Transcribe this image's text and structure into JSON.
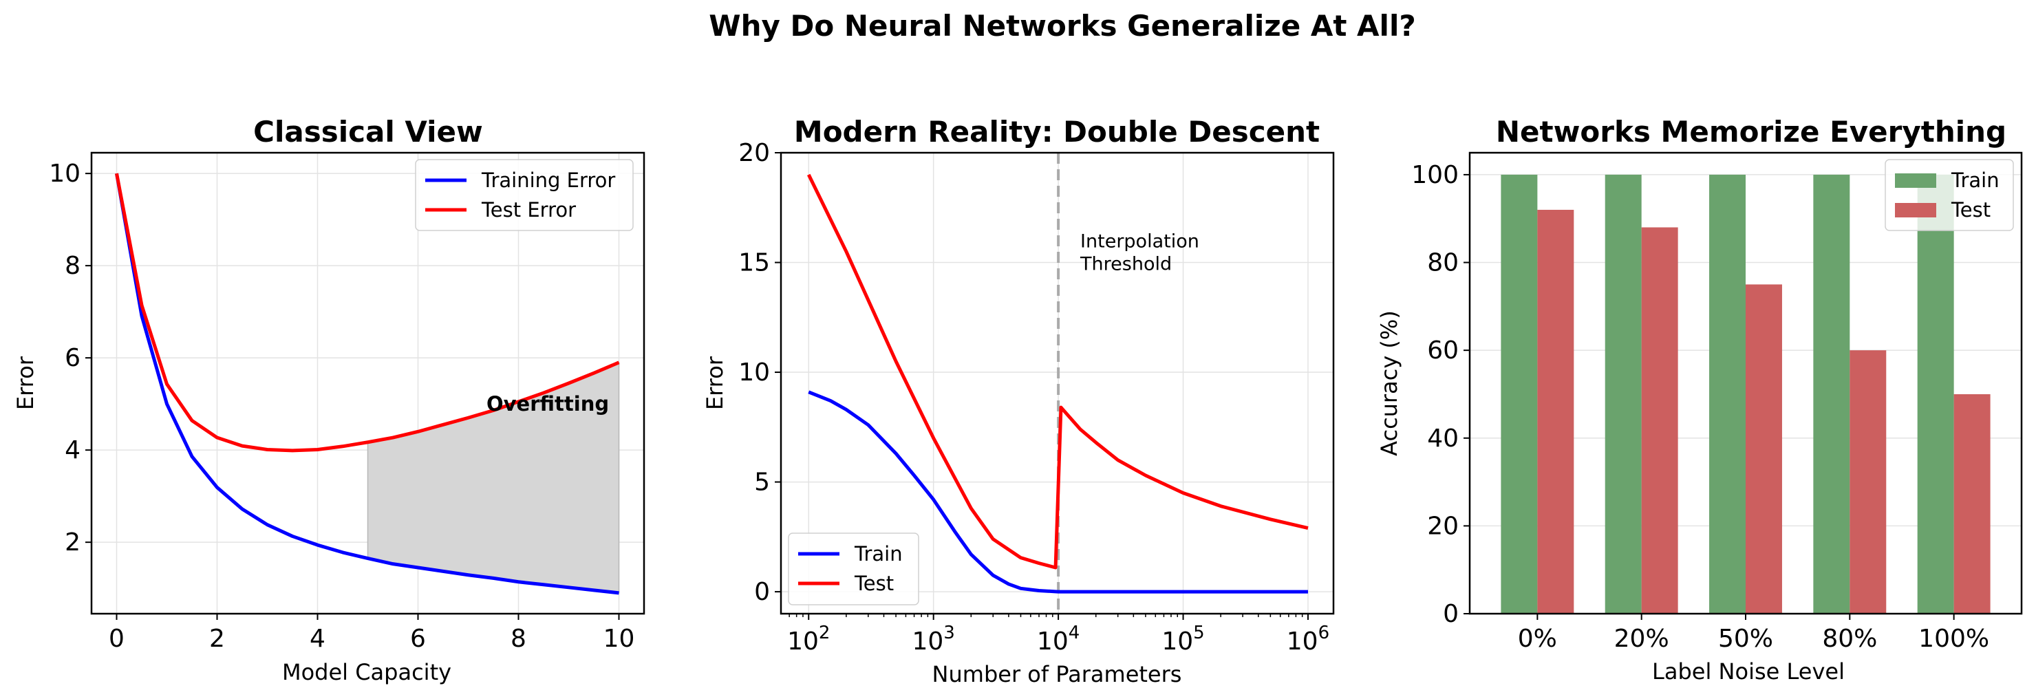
{
  "figure": {
    "title": "Why Do Neural Networks Generalize At All?"
  },
  "chart_data": [
    {
      "type": "line",
      "title": "Classical View",
      "xlabel": "Model Capacity",
      "ylabel": "Error",
      "xlim": [
        -0.5,
        10.5
      ],
      "ylim": [
        0.45,
        10.45
      ],
      "xticks": [
        "0",
        "2",
        "4",
        "6",
        "8",
        "10"
      ],
      "xtick_values": [
        0,
        2,
        4,
        6,
        8,
        10
      ],
      "yticks": [
        "2",
        "4",
        "6",
        "8",
        "10"
      ],
      "ytick_values": [
        2,
        4,
        6,
        8,
        10
      ],
      "grid": true,
      "legend_position": "top-right",
      "x": [
        0,
        0.5,
        1,
        1.5,
        2,
        2.5,
        3,
        3.5,
        4,
        4.5,
        5,
        5.5,
        6,
        6.5,
        7,
        7.5,
        8,
        8.5,
        9,
        9.5,
        10
      ],
      "series": [
        {
          "name": "Training Error",
          "color": "#0000ff",
          "values": [
            10.0,
            6.91,
            5.0,
            3.86,
            3.19,
            2.72,
            2.38,
            2.13,
            1.94,
            1.78,
            1.65,
            1.53,
            1.45,
            1.37,
            1.29,
            1.22,
            1.14,
            1.08,
            1.02,
            0.96,
            0.9
          ]
        },
        {
          "name": "Test Error",
          "color": "#ff0000",
          "values": [
            10.0,
            7.14,
            5.43,
            4.64,
            4.27,
            4.09,
            4.01,
            3.99,
            4.01,
            4.08,
            4.17,
            4.27,
            4.4,
            4.55,
            4.7,
            4.86,
            5.05,
            5.24,
            5.45,
            5.67,
            5.9
          ]
        }
      ],
      "shaded_region": {
        "x_from": 5,
        "x_to": 10,
        "between": [
          "Training Error",
          "Test Error"
        ],
        "color": "#d6d6d6"
      },
      "annotations": [
        {
          "text": "Overfitting",
          "x": 7.5,
          "y": 5.0
        }
      ]
    },
    {
      "type": "line",
      "title": "Modern Reality: Double Descent",
      "xlabel": "Number of Parameters",
      "ylabel": "Error",
      "xscale": "log",
      "xlim": [
        60,
        1600000
      ],
      "ylim": [
        -1,
        20
      ],
      "xticks": [
        "10^2",
        "10^3",
        "10^4",
        "10^5",
        "10^6"
      ],
      "xtick_values": [
        100,
        1000,
        10000,
        100000,
        1000000
      ],
      "yticks": [
        "0",
        "5",
        "10",
        "15",
        "20"
      ],
      "ytick_values": [
        0,
        5,
        10,
        15,
        20
      ],
      "grid": true,
      "legend_position": "bottom-left",
      "series": [
        {
          "name": "Train",
          "color": "#0000ff",
          "x": [
            100,
            150,
            200,
            300,
            500,
            700,
            1000,
            1500,
            2000,
            3000,
            4000,
            5000,
            7000,
            10000,
            100000,
            1000000
          ],
          "values": [
            9.1,
            8.7,
            8.3,
            7.6,
            6.3,
            5.3,
            4.2,
            2.7,
            1.7,
            0.75,
            0.35,
            0.15,
            0.05,
            0.0,
            0.0,
            0.0
          ]
        },
        {
          "name": "Test",
          "color": "#ff0000",
          "x": [
            100,
            200,
            500,
            1000,
            2000,
            3000,
            5000,
            7000,
            9500,
            10500,
            15000,
            20000,
            30000,
            50000,
            100000,
            200000,
            500000,
            1000000
          ],
          "values": [
            19.0,
            15.5,
            10.5,
            7.0,
            3.8,
            2.4,
            1.55,
            1.3,
            1.1,
            8.4,
            7.4,
            6.8,
            6.0,
            5.3,
            4.5,
            3.9,
            3.3,
            2.9
          ]
        }
      ],
      "vline": {
        "x": 10000,
        "style": "dashed",
        "color": "#aaaaaa"
      },
      "annotations": [
        {
          "text": "Interpolation\nThreshold",
          "x": 15000,
          "y": 15.0
        }
      ]
    },
    {
      "type": "bar",
      "title": "Networks Memorize Everything",
      "xlabel": "Label Noise Level",
      "ylabel": "Accuracy (%)",
      "categories": [
        "0%",
        "20%",
        "50%",
        "80%",
        "100%"
      ],
      "ylim": [
        0,
        105
      ],
      "yticks": [
        "0",
        "20",
        "40",
        "60",
        "80",
        "100"
      ],
      "ytick_values": [
        0,
        20,
        40,
        60,
        80,
        100
      ],
      "grid": true,
      "legend_position": "top-right",
      "series": [
        {
          "name": "Train",
          "color": "#6aa36d",
          "values": [
            100,
            100,
            100,
            100,
            100
          ]
        },
        {
          "name": "Test",
          "color": "#cc5f5f",
          "values": [
            92,
            88,
            75,
            60,
            50
          ]
        }
      ]
    }
  ]
}
